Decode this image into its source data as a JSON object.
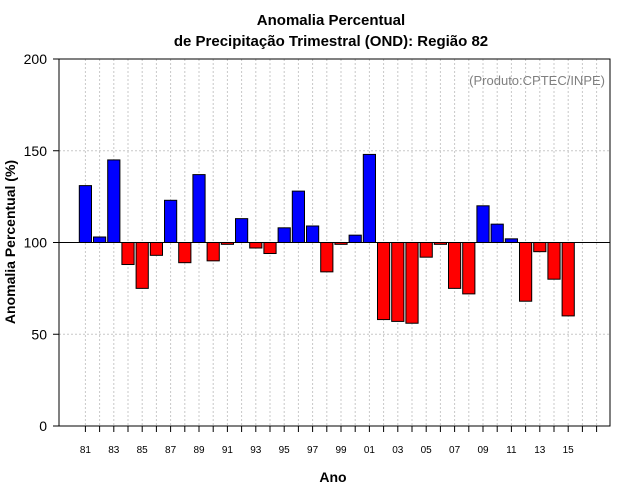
{
  "chart_data": {
    "type": "bar",
    "title": [
      "Anomalia Percentual",
      "de Precipitação Trimestral (OND): Região 82"
    ],
    "xlabel": "Ano",
    "ylabel": "Anomalia Percentual (%)",
    "annotation": "(Produto:CPTEC/INPE)",
    "ylim": [
      0,
      200
    ],
    "yticks": [
      0,
      50,
      100,
      150,
      200
    ],
    "baseline": 100,
    "grid": true,
    "categories": [
      "81",
      "82",
      "83",
      "84",
      "85",
      "86",
      "87",
      "88",
      "89",
      "90",
      "91",
      "92",
      "93",
      "94",
      "95",
      "96",
      "97",
      "98",
      "99",
      "00",
      "01",
      "02",
      "03",
      "04",
      "05",
      "06",
      "07",
      "08",
      "09",
      "10",
      "11",
      "12",
      "13",
      "14",
      "15"
    ],
    "tick_labels": [
      "81",
      "83",
      "85",
      "87",
      "89",
      "91",
      "93",
      "95",
      "97",
      "99",
      "01",
      "03",
      "05",
      "07",
      "09",
      "11",
      "13",
      "15"
    ],
    "values": [
      131,
      103,
      145,
      88,
      75,
      93,
      123,
      89,
      137,
      90,
      99,
      113,
      97,
      94,
      108,
      128,
      109,
      84,
      99,
      104,
      148,
      58,
      57,
      56,
      92,
      99,
      75,
      72,
      120,
      110,
      102,
      68,
      95,
      80,
      60
    ],
    "colors": {
      "above": "#0000ff",
      "below": "#ff0000",
      "outline": "#000000",
      "grid": "#c8c8c8"
    }
  }
}
